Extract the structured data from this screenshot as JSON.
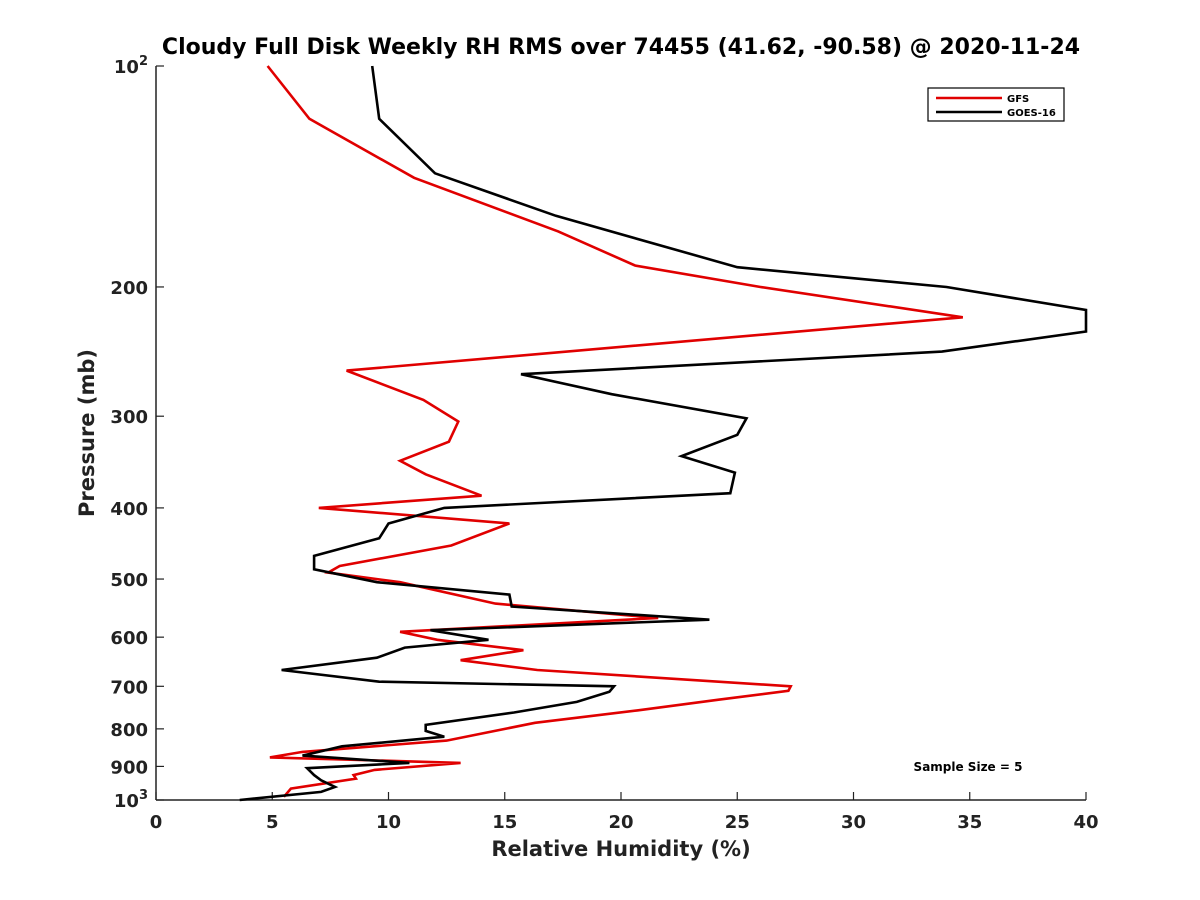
{
  "chart_data": {
    "type": "line",
    "title": "Cloudy Full Disk Weekly RH RMS over 74455 (41.62, -90.58) @ 2020-11-24",
    "xlabel": "Relative Humidity (%)",
    "ylabel": "Pressure (mb)",
    "xlim": [
      0,
      40
    ],
    "ylim": [
      1000,
      100
    ],
    "yscale": "log",
    "y_reversed": true,
    "grid": false,
    "xticks": [
      0,
      5,
      10,
      15,
      20,
      25,
      30,
      35,
      40
    ],
    "xtick_labels": [
      "0",
      "5",
      "10",
      "15",
      "20",
      "25",
      "30",
      "35",
      "40"
    ],
    "yticks": [
      100,
      200,
      300,
      400,
      500,
      600,
      700,
      800,
      900,
      1000
    ],
    "ytick_labels": [
      {
        "base": "10",
        "sup": "2"
      },
      {
        "base": "200",
        "sup": ""
      },
      {
        "base": "300",
        "sup": ""
      },
      {
        "base": "400",
        "sup": ""
      },
      {
        "base": "500",
        "sup": ""
      },
      {
        "base": "600",
        "sup": ""
      },
      {
        "base": "700",
        "sup": ""
      },
      {
        "base": "800",
        "sup": ""
      },
      {
        "base": "900",
        "sup": ""
      },
      {
        "base": "10",
        "sup": "3"
      }
    ],
    "legend_position": "top-right",
    "annotation": "Sample Size = 5",
    "series": [
      {
        "name": "GFS",
        "color": "#e00000",
        "x": [
          4.8,
          6.6,
          11.1,
          17.3,
          20.6,
          26.0,
          34.7,
          8.2,
          11.5,
          13.0,
          12.6,
          10.5,
          11.6,
          14.0,
          7.0,
          15.2,
          12.7,
          7.9,
          7.4,
          10.5,
          14.6,
          21.6,
          10.5,
          12.1,
          15.8,
          13.1,
          16.4,
          27.3,
          27.2,
          24.2,
          20.7,
          16.3,
          12.5,
          6.3,
          4.9,
          13.1,
          9.4,
          8.5,
          8.6,
          5.8,
          5.5
        ],
        "y": [
          100,
          118,
          142,
          168,
          187,
          200,
          220,
          260,
          285,
          305,
          325,
          345,
          360,
          385,
          400,
          420,
          450,
          480,
          490,
          505,
          540,
          565,
          590,
          605,
          625,
          645,
          665,
          700,
          710,
          730,
          755,
          785,
          830,
          860,
          875,
          890,
          910,
          925,
          935,
          965,
          990
        ]
      },
      {
        "name": "GOES-16",
        "color": "#000000",
        "x": [
          9.3,
          9.6,
          12.0,
          17.2,
          25.0,
          34.0,
          40.0,
          40.0,
          33.8,
          15.7,
          19.6,
          25.4,
          25.0,
          22.6,
          24.9,
          24.7,
          12.4,
          10.0,
          9.6,
          6.8,
          6.8,
          9.5,
          15.2,
          15.3,
          23.8,
          11.8,
          14.3,
          10.7,
          9.5,
          5.4,
          9.6,
          19.7,
          19.5,
          18.1,
          15.4,
          11.6,
          11.6,
          12.4,
          8.0,
          6.3,
          10.9,
          6.5,
          6.8,
          7.1,
          7.7,
          7.1,
          3.6
        ],
        "y": [
          100,
          118,
          140,
          160,
          188,
          200,
          215,
          230,
          245,
          263,
          280,
          302,
          318,
          340,
          358,
          382,
          400,
          420,
          440,
          465,
          485,
          505,
          525,
          545,
          568,
          587,
          605,
          620,
          640,
          665,
          690,
          700,
          712,
          735,
          760,
          790,
          805,
          820,
          845,
          870,
          890,
          905,
          925,
          940,
          960,
          975,
          1000
        ]
      }
    ]
  }
}
